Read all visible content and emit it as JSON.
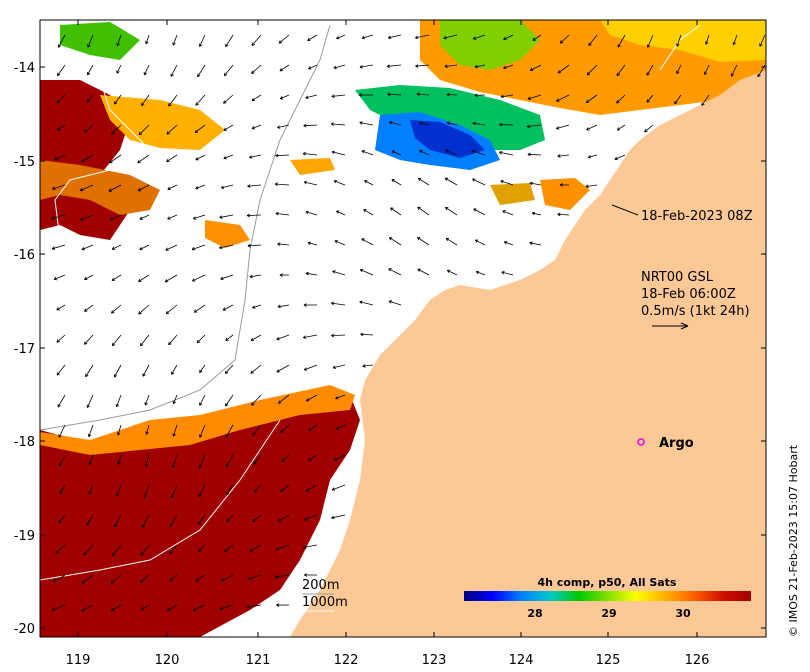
{
  "map": {
    "colors": {
      "land": "#fcc896",
      "ocean_missing": "#ffffff",
      "hot": "#a00000",
      "argo": "#e000e0",
      "arrow": "#000000",
      "bathy_200": "#9a9a9a",
      "bathy_1000": "#ffffff"
    },
    "lon_ticks": [
      "119",
      "120",
      "121",
      "122",
      "123",
      "124",
      "125",
      "126"
    ],
    "lat_ticks": [
      "-14",
      "-15",
      "-16",
      "-17",
      "-18",
      "-19",
      "-20"
    ],
    "timestamp_label": "18-Feb-2023 08Z",
    "current_legend": {
      "line1": "NRT00 GSL",
      "line2": "18-Feb 06:00Z",
      "line3": "0.5m/s (1kt 24h)"
    },
    "argo": {
      "label": "Argo",
      "lon": 125.28,
      "lat": -18.0
    },
    "bathymetry_legend": {
      "contour_200": "200m",
      "contour_1000": "1000m"
    },
    "colorbar": {
      "title": "4h comp, p50, All Sats",
      "ticks": [
        "28",
        "29",
        "30"
      ],
      "stops": [
        "#00007f",
        "#0000ff",
        "#0080ff",
        "#00c8c8",
        "#00c800",
        "#80e000",
        "#ffff00",
        "#ffb000",
        "#ff6000",
        "#d01000",
        "#a00000"
      ]
    },
    "credit": "© IMOS 21-Feb-2023 15:07 Hobart"
  }
}
